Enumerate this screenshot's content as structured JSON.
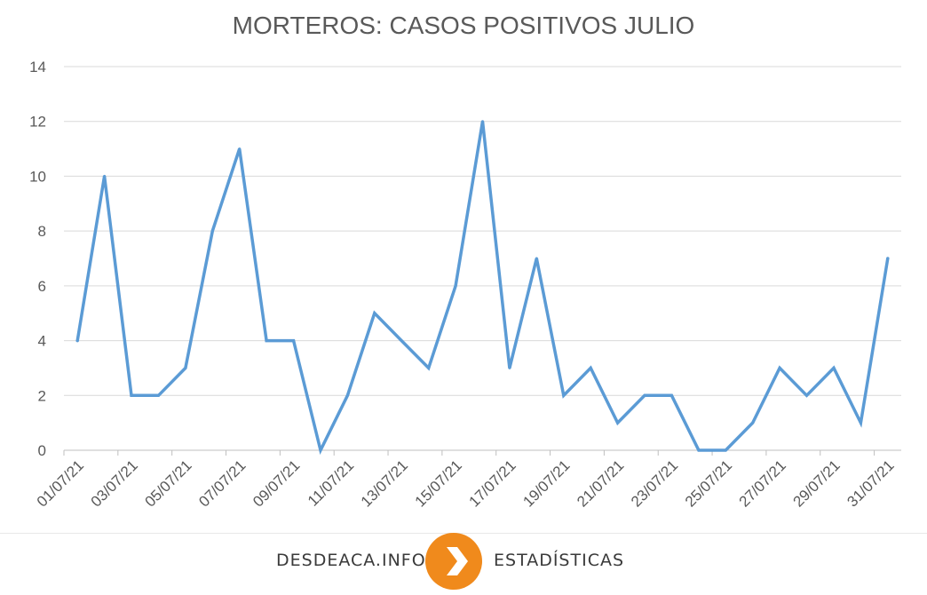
{
  "chart_data": {
    "type": "line",
    "title": "MORTEROS: CASOS POSITIVOS JULIO",
    "xlabel": "",
    "ylabel": "",
    "ylim": [
      0,
      14
    ],
    "yticks": [
      "0",
      "2",
      "4",
      "6",
      "8",
      "10",
      "12",
      "14"
    ],
    "grid": true,
    "line_color": "#5b9bd5",
    "x": [
      "01/07/21",
      "02/07/21",
      "03/07/21",
      "04/07/21",
      "05/07/21",
      "06/07/21",
      "07/07/21",
      "08/07/21",
      "09/07/21",
      "10/07/21",
      "11/07/21",
      "12/07/21",
      "13/07/21",
      "14/07/21",
      "15/07/21",
      "16/07/21",
      "17/07/21",
      "18/07/21",
      "19/07/21",
      "20/07/21",
      "21/07/21",
      "22/07/21",
      "23/07/21",
      "24/07/21",
      "25/07/21",
      "26/07/21",
      "27/07/21",
      "28/07/21",
      "29/07/21",
      "30/07/21",
      "31/07/21"
    ],
    "x_tick_labels": [
      "01/07/21",
      "03/07/21",
      "05/07/21",
      "07/07/21",
      "09/07/21",
      "11/07/21",
      "13/07/21",
      "15/07/21",
      "17/07/21",
      "19/07/21",
      "21/07/21",
      "23/07/21",
      "25/07/21",
      "27/07/21",
      "29/07/21",
      "31/07/21"
    ],
    "values": [
      4,
      10,
      2,
      2,
      3,
      8,
      11,
      4,
      4,
      0,
      2,
      5,
      4,
      3,
      6,
      12,
      3,
      7,
      2,
      3,
      1,
      2,
      2,
      0,
      0,
      1,
      3,
      2,
      3,
      1,
      7
    ]
  },
  "footer": {
    "site": "DESDEACA.INFO",
    "section": "ESTADÍSTICAS",
    "logo_colors": {
      "outer": "#f08a1c",
      "inner": "#ffffff"
    },
    "logo_icon": "chevron-right-icon"
  }
}
